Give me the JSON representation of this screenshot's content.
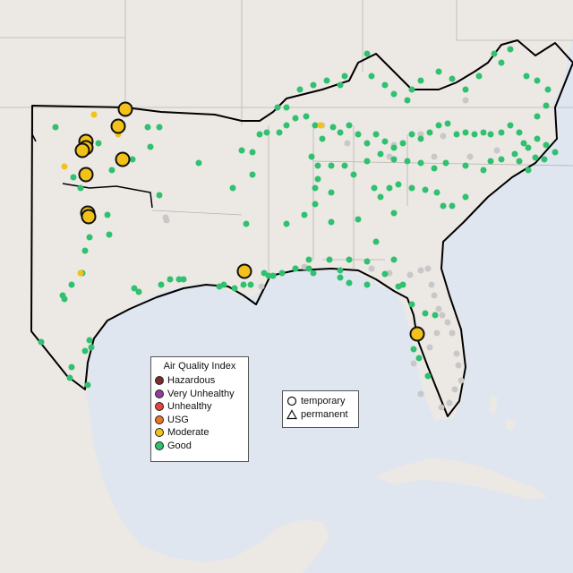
{
  "legend": {
    "title": "Air Quality Index",
    "categories": [
      {
        "label": "Hazardous",
        "color": "#7e2b2b"
      },
      {
        "label": "Very Unhealthy",
        "color": "#8f3f97"
      },
      {
        "label": "Unhealthy",
        "color": "#e8433a"
      },
      {
        "label": "USG",
        "color": "#e8752a"
      },
      {
        "label": "Moderate",
        "color": "#f2c11a"
      },
      {
        "label": "Good",
        "color": "#2fc16f"
      }
    ]
  },
  "marker_legend": {
    "temporary_label": "temporary",
    "permanent_label": "permanent"
  },
  "colors": {
    "ocean": "#dfe6ef",
    "land": "#ece8e4",
    "no_data": "#c8c8c8"
  }
}
